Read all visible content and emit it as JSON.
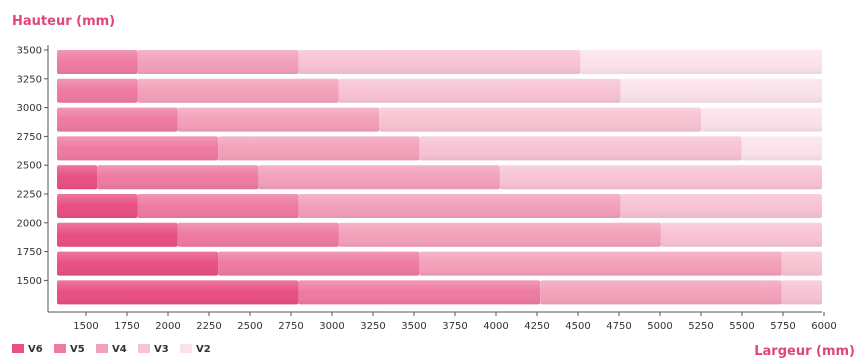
{
  "chart_data": {
    "type": "bar",
    "orientation": "horizontal",
    "stacked": true,
    "ylabel": "Hauteur (mm)",
    "xlabel": "Largeur (mm)",
    "x_ticks": [
      1500,
      1750,
      2000,
      2250,
      2500,
      2750,
      3000,
      3250,
      3500,
      3750,
      4000,
      4250,
      4500,
      4750,
      5000,
      5250,
      5500,
      5750,
      6000
    ],
    "y_ticks": [
      3500,
      3250,
      3000,
      2750,
      2500,
      2250,
      2000,
      1750,
      1500
    ],
    "xlim": [
      1250,
      6000
    ],
    "grid": false,
    "legend_position": "bottom-left",
    "series": [
      {
        "name": "V6",
        "color": "#e84f84"
      },
      {
        "name": "V5",
        "color": "#ee7aa0"
      },
      {
        "name": "V4",
        "color": "#f3a0ba"
      },
      {
        "name": "V3",
        "color": "#f7c3d3"
      },
      {
        "name": "V2",
        "color": "#fbe2ea"
      }
    ],
    "rows": [
      {
        "height": 3500,
        "limits": {
          "V5": 1750,
          "V4": 2750,
          "V3": 4500,
          "V2": 6000
        }
      },
      {
        "height": 3250,
        "limits": {
          "V5": 1750,
          "V4": 3000,
          "V3": 4750,
          "V2": 6000
        }
      },
      {
        "height": 3000,
        "limits": {
          "V5": 2000,
          "V4": 3250,
          "V3": 5250,
          "V2": 6000
        }
      },
      {
        "height": 2750,
        "limits": {
          "V5": 2250,
          "V4": 3500,
          "V3": 5500,
          "V2": 6000
        }
      },
      {
        "height": 2500,
        "limits": {
          "V6": 1500,
          "V5": 2500,
          "V4": 4000,
          "V3": 6000
        }
      },
      {
        "height": 2250,
        "limits": {
          "V6": 1750,
          "V5": 2750,
          "V4": 4750,
          "V3": 6000
        }
      },
      {
        "height": 2000,
        "limits": {
          "V6": 2000,
          "V5": 3000,
          "V4": 5000,
          "V3": 6000
        }
      },
      {
        "height": 1750,
        "limits": {
          "V6": 2250,
          "V5": 3500,
          "V4": 5750,
          "V3": 6000
        }
      },
      {
        "height": 1500,
        "limits": {
          "V6": 2750,
          "V5": 4250,
          "V4": 5750,
          "V3": 6000
        }
      }
    ]
  },
  "colors": {
    "axis_title": "#e0467b",
    "axis_line": "#555555",
    "tick_text": "#333333"
  }
}
